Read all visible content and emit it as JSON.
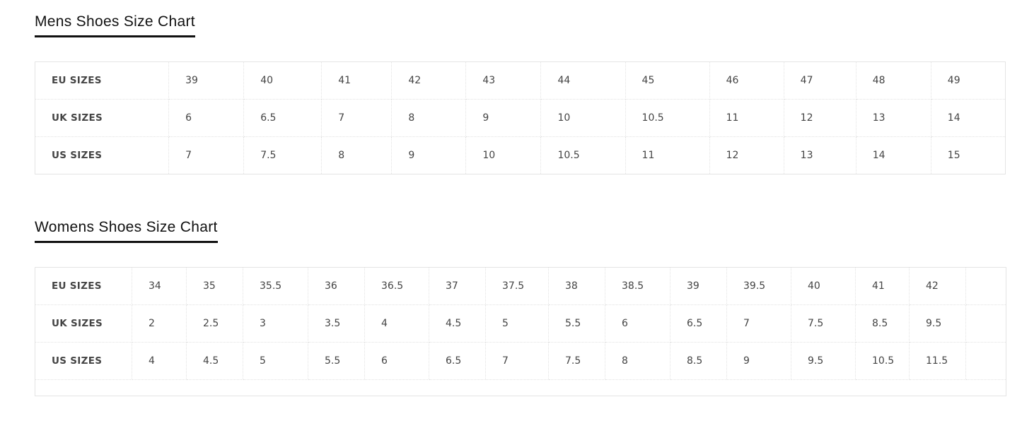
{
  "mens": {
    "title": "Mens Shoes Size Chart",
    "rows": [
      {
        "label": "EU SIZES",
        "values": [
          "39",
          "40",
          "41",
          "42",
          "43",
          "44",
          "45",
          "46",
          "47",
          "48",
          "49"
        ]
      },
      {
        "label": "UK SIZES",
        "values": [
          "6",
          "6.5",
          "7",
          "8",
          "9",
          "10",
          "10.5",
          "11",
          "12",
          "13",
          "14"
        ]
      },
      {
        "label": "US SIZES",
        "values": [
          "7",
          "7.5",
          "8",
          "9",
          "10",
          "10.5",
          "11",
          "12",
          "13",
          "14",
          "15"
        ]
      }
    ]
  },
  "womens": {
    "title": "Womens Shoes Size Chart",
    "rows": [
      {
        "label": "EU SIZES",
        "values": [
          "34",
          "35",
          "35.5",
          "36",
          "36.5",
          "37",
          "37.5",
          "38",
          "38.5",
          "39",
          "39.5",
          "40",
          "41",
          "42",
          ""
        ]
      },
      {
        "label": "UK SIZES",
        "values": [
          "2",
          "2.5",
          "3",
          "3.5",
          "4",
          "4.5",
          "5",
          "5.5",
          "6",
          "6.5",
          "7",
          "7.5",
          "8.5",
          "9.5",
          ""
        ]
      },
      {
        "label": "US SIZES",
        "values": [
          "4",
          "4.5",
          "5",
          "5.5",
          "6",
          "6.5",
          "7",
          "7.5",
          "8",
          "8.5",
          "9",
          "9.5",
          "10.5",
          "11.5",
          ""
        ]
      }
    ]
  }
}
